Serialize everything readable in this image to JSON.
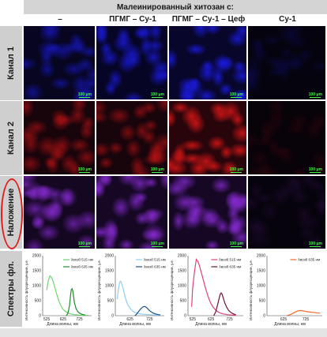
{
  "header": {
    "title": "Малеинированный хитозан с:",
    "columns": [
      "–",
      "ПГМГ – Су-1",
      "ПГМГ – Су-1 – Цеф",
      "Су-1"
    ]
  },
  "rows": {
    "channel1": "Канал 1",
    "channel2": "Канал 2",
    "overlay": "Наложение",
    "spectra": "Спектры фл."
  },
  "scale_bar": "100 μm",
  "colors": {
    "channel1": "#1a1adf",
    "channel2": "#c81414",
    "overlay": "#8a2bd6",
    "highlight_oval": "#e02020"
  },
  "chart_data": [
    {
      "type": "line",
      "ylabel": "Интенсивность флуоресценции, у.е.",
      "xlabel": "Длина волны, нм",
      "xticks": [
        525,
        625,
        725
      ],
      "yticks": [
        0,
        500,
        1000,
        1500,
        2000
      ],
      "xlim": [
        500,
        800
      ],
      "ylim": [
        0,
        2000
      ],
      "series": [
        {
          "name": "λвозб 515 нм",
          "color": "#6ed66e",
          "x": [
            525,
            535,
            545,
            555,
            565,
            575,
            585,
            595,
            605,
            615,
            625,
            635,
            645,
            655,
            665,
            675,
            685,
            695,
            705,
            715,
            725,
            735,
            745,
            760,
            780
          ],
          "y": [
            850,
            1180,
            1330,
            1270,
            1120,
            940,
            740,
            560,
            410,
            300,
            210,
            160,
            120,
            90,
            70,
            55,
            45,
            35,
            30,
            25,
            20,
            18,
            15,
            12,
            10
          ]
        },
        {
          "name": "λвозб 635 нм",
          "color": "#1f8a2a",
          "x": [
            645,
            655,
            665,
            670,
            675,
            680,
            685,
            690,
            695,
            705,
            715,
            725,
            735,
            745,
            760
          ],
          "y": [
            0,
            80,
            350,
            640,
            860,
            900,
            820,
            620,
            420,
            230,
            140,
            90,
            60,
            40,
            25
          ]
        }
      ]
    },
    {
      "type": "line",
      "ylabel": "Интенсивность флуоресценции, у.е.",
      "xlabel": "Длина волны, нм",
      "xticks": [
        625,
        725
      ],
      "yticks": [
        0,
        500,
        1000,
        1500,
        2000
      ],
      "xlim": [
        550,
        800
      ],
      "ylim": [
        0,
        2000
      ],
      "series": [
        {
          "name": "λвозб 515 нм",
          "color": "#8fcff0",
          "x": [
            560,
            565,
            570,
            575,
            580,
            590,
            600,
            610,
            620,
            630,
            640,
            650,
            660,
            670,
            680,
            690,
            700,
            720,
            740,
            760,
            780
          ],
          "y": [
            550,
            850,
            1050,
            1150,
            1120,
            900,
            620,
            420,
            300,
            210,
            150,
            110,
            85,
            70,
            60,
            50,
            45,
            35,
            28,
            22,
            18
          ]
        },
        {
          "name": "λвозб 635 нм",
          "color": "#1c4f8c",
          "x": [
            650,
            660,
            670,
            680,
            690,
            700,
            710,
            720,
            730,
            740,
            750,
            760,
            770,
            780
          ],
          "y": [
            0,
            60,
            150,
            230,
            290,
            310,
            270,
            200,
            140,
            100,
            70,
            50,
            35,
            25
          ]
        }
      ]
    },
    {
      "type": "line",
      "ylabel": "Интенсивность флуоресценции, у.е.",
      "xlabel": "Длина волны, нм",
      "xticks": [
        525,
        625,
        725
      ],
      "yticks": [
        0,
        500,
        1000,
        1500,
        2000
      ],
      "xlim": [
        500,
        800
      ],
      "ylim": [
        0,
        2000
      ],
      "series": [
        {
          "name": "λвозб 515 нм",
          "color": "#e0407c",
          "x": [
            520,
            525,
            535,
            545,
            555,
            565,
            575,
            585,
            595,
            605,
            615,
            625,
            635,
            645,
            655,
            665,
            675,
            685,
            695,
            705,
            715,
            725,
            745,
            760
          ],
          "y": [
            300,
            900,
            1450,
            1880,
            1800,
            1600,
            1380,
            1150,
            920,
            720,
            540,
            400,
            300,
            220,
            160,
            120,
            90,
            70,
            55,
            45,
            35,
            28,
            20,
            15
          ]
        },
        {
          "name": "λвозб 635 нм",
          "color": "#6e1436",
          "x": [
            640,
            650,
            660,
            670,
            675,
            680,
            685,
            690,
            695,
            700,
            710,
            720,
            730,
            740,
            750,
            760
          ],
          "y": [
            0,
            120,
            350,
            600,
            720,
            760,
            720,
            620,
            520,
            420,
            280,
            180,
            120,
            80,
            50,
            30
          ]
        }
      ]
    },
    {
      "type": "line",
      "ylabel": "Интенсивность флуоресценции, у.е.",
      "xlabel": "Длина волны, нм",
      "xticks": [
        625,
        725
      ],
      "yticks": [
        0,
        500,
        1000,
        1500,
        2000
      ],
      "xlim": [
        550,
        800
      ],
      "ylim": [
        0,
        2000
      ],
      "series": [
        {
          "name": "λвозб 635 нм",
          "color": "#f06a2a",
          "x": [
            640,
            650,
            660,
            670,
            680,
            690,
            700,
            710,
            720,
            730,
            740,
            750,
            760,
            770,
            780,
            790
          ],
          "y": [
            0,
            20,
            50,
            90,
            130,
            160,
            175,
            165,
            150,
            135,
            125,
            115,
            110,
            100,
            90,
            85
          ]
        }
      ]
    }
  ]
}
